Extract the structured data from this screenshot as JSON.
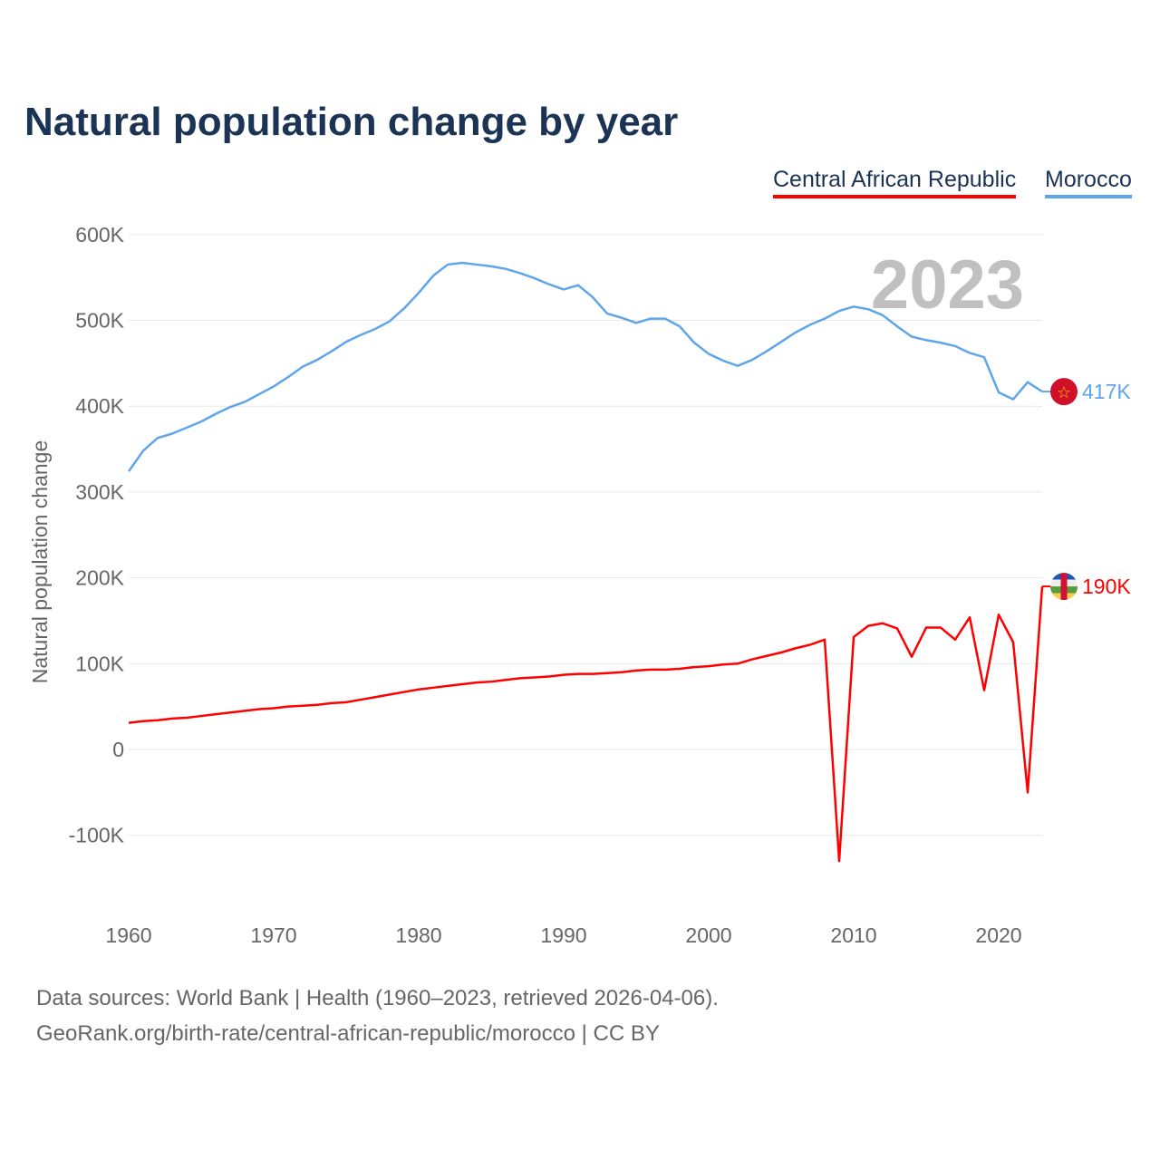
{
  "chart_data": {
    "type": "line",
    "title": "Natural population change by year",
    "xlabel": "",
    "ylabel": "Natural population change",
    "xlim": [
      1960,
      2023
    ],
    "ylim": [
      -150000,
      600000
    ],
    "grid": true,
    "legend_placement": "top-right",
    "year_watermark": "2023",
    "y_ticks": [
      {
        "v": 600000,
        "l": "600K"
      },
      {
        "v": 500000,
        "l": "500K"
      },
      {
        "v": 400000,
        "l": "400K"
      },
      {
        "v": 300000,
        "l": "300K"
      },
      {
        "v": 200000,
        "l": "200K"
      },
      {
        "v": 100000,
        "l": "100K"
      },
      {
        "v": 0,
        "l": "0"
      },
      {
        "v": -100000,
        "l": "-100K"
      }
    ],
    "x_ticks": [
      {
        "v": 1960,
        "l": "1960"
      },
      {
        "v": 1970,
        "l": "1970"
      },
      {
        "v": 1980,
        "l": "1980"
      },
      {
        "v": 1990,
        "l": "1990"
      },
      {
        "v": 2000,
        "l": "2000"
      },
      {
        "v": 2010,
        "l": "2010"
      },
      {
        "v": 2020,
        "l": "2020"
      }
    ],
    "x_start": 1960,
    "series": [
      {
        "name": "Central African Republic",
        "color": "#ff0000",
        "end_label": "190K",
        "values": [
          31,
          33,
          34,
          36,
          37,
          39,
          41,
          43,
          45,
          47,
          48,
          50,
          51,
          52,
          54,
          55,
          58,
          61,
          64,
          67,
          70,
          72,
          74,
          76,
          78,
          79,
          81,
          83,
          84,
          85,
          87,
          88,
          88,
          89,
          90,
          92,
          93,
          93,
          94,
          96,
          97,
          99,
          100,
          105,
          109,
          113,
          118,
          122,
          128,
          -130,
          131,
          144,
          147,
          141,
          108,
          142,
          142,
          128,
          154,
          69,
          157,
          125,
          -50,
          190
        ]
      },
      {
        "name": "Morocco",
        "color": "#5ea5ea",
        "end_label": "417K",
        "values": [
          324,
          348,
          363,
          368,
          375,
          382,
          391,
          399,
          405,
          414,
          423,
          434,
          446,
          454,
          464,
          475,
          483,
          490,
          499,
          514,
          532,
          552,
          565,
          567,
          565,
          563,
          560,
          555,
          549,
          542,
          536,
          541,
          527,
          508,
          503,
          497,
          502,
          502,
          493,
          474,
          461,
          453,
          447,
          454,
          464,
          475,
          486,
          495,
          502,
          511,
          516,
          513,
          506,
          493,
          481,
          477,
          474,
          470,
          462,
          457,
          416,
          408,
          428,
          417
        ]
      }
    ],
    "value_unit": "thousands"
  },
  "footer": {
    "line1": "Data sources: World Bank | Health (1960–2023, retrieved 2026-04-06).",
    "line2": "GeoRank.org/birth-rate/central-african-republic/morocco | CC BY"
  }
}
